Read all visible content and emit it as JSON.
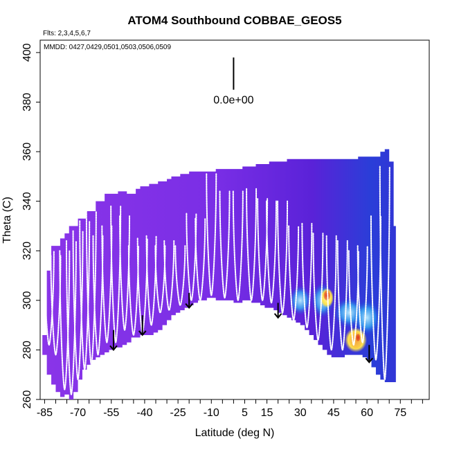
{
  "chart_data": {
    "type": "heatmap",
    "title": "ATOM4 Southbound COBBAE_GEOS5",
    "flights_note": "Flts: 2,3,4,5,6,7",
    "dates_note": "MMDD: 0427,0429,0501,0503,0506,0509",
    "xlabel": "Latitude (deg N)",
    "ylabel": "Theta (C)",
    "xlim": [
      -87,
      88
    ],
    "ylim": [
      260,
      405
    ],
    "x_ticks": [
      -85,
      -70,
      -55,
      -40,
      -25,
      -10,
      5,
      15,
      30,
      45,
      60,
      75
    ],
    "x_tick_labels": [
      "-85",
      "-70",
      "-55",
      "-40",
      "-25",
      "-10",
      "5",
      "15",
      "30",
      "45",
      "60",
      "75"
    ],
    "x_minor_ticks": [
      -80,
      -75,
      -65,
      -60,
      -50,
      -45,
      -35,
      -30,
      -20,
      -15,
      -5,
      0,
      10,
      20,
      25,
      35,
      40,
      50,
      55,
      65,
      70,
      80,
      85
    ],
    "y_ticks": [
      260,
      280,
      300,
      320,
      340,
      360,
      380,
      400
    ],
    "y_tick_labels": [
      "260",
      "280",
      "300",
      "320",
      "340",
      "360",
      "380",
      "400"
    ],
    "scale_bar_label": "0.0e+00",
    "colors": {
      "background_field": "#7f2fe6",
      "low": "#5a1fd6",
      "mid": "#1550e0",
      "light": "#6fd0ff",
      "white": "#ffffff",
      "yellow": "#ffe34a",
      "orange": "#f08a1c",
      "red": "#d4281a",
      "flight_track": "#ffffff",
      "arrow": "#000000"
    },
    "upper_boundary": [
      [
        -86,
        286
      ],
      [
        -84,
        312
      ],
      [
        -82,
        322
      ],
      [
        -80,
        322
      ],
      [
        -78,
        325
      ],
      [
        -76,
        327
      ],
      [
        -74,
        330
      ],
      [
        -72,
        330
      ],
      [
        -70,
        333
      ],
      [
        -68,
        333
      ],
      [
        -66,
        336
      ],
      [
        -64,
        336
      ],
      [
        -62,
        340
      ],
      [
        -60,
        340
      ],
      [
        -58,
        343
      ],
      [
        -56,
        343
      ],
      [
        -54,
        343
      ],
      [
        -52,
        344
      ],
      [
        -50,
        344
      ],
      [
        -48,
        343
      ],
      [
        -46,
        343
      ],
      [
        -44,
        345
      ],
      [
        -42,
        346
      ],
      [
        -40,
        346
      ],
      [
        -38,
        347
      ],
      [
        -36,
        347
      ],
      [
        -34,
        348
      ],
      [
        -32,
        348
      ],
      [
        -30,
        349
      ],
      [
        -28,
        350
      ],
      [
        -26,
        350
      ],
      [
        -24,
        351
      ],
      [
        -22,
        351
      ],
      [
        -20,
        352
      ],
      [
        -18,
        352
      ],
      [
        -16,
        352
      ],
      [
        -14,
        352
      ],
      [
        -12,
        352
      ],
      [
        -10,
        352
      ],
      [
        -8,
        353
      ],
      [
        -6,
        353
      ],
      [
        -4,
        353
      ],
      [
        -2,
        353
      ],
      [
        0,
        353
      ],
      [
        2,
        353
      ],
      [
        4,
        354
      ],
      [
        6,
        354
      ],
      [
        8,
        354
      ],
      [
        10,
        355
      ],
      [
        12,
        355
      ],
      [
        14,
        355
      ],
      [
        16,
        356
      ],
      [
        18,
        356
      ],
      [
        20,
        356
      ],
      [
        22,
        356
      ],
      [
        24,
        357
      ],
      [
        26,
        357
      ],
      [
        28,
        357
      ],
      [
        30,
        357
      ],
      [
        32,
        357
      ],
      [
        34,
        357
      ],
      [
        36,
        357
      ],
      [
        38,
        357
      ],
      [
        40,
        357
      ],
      [
        42,
        357
      ],
      [
        44,
        357
      ],
      [
        46,
        357
      ],
      [
        48,
        357
      ],
      [
        50,
        357
      ],
      [
        52,
        357
      ],
      [
        54,
        357
      ],
      [
        56,
        358
      ],
      [
        58,
        358
      ],
      [
        60,
        358
      ],
      [
        62,
        358
      ],
      [
        64,
        358
      ],
      [
        66,
        360
      ],
      [
        68,
        361
      ],
      [
        70,
        356
      ],
      [
        72,
        330
      ],
      [
        73,
        300
      ]
    ],
    "lower_boundary": [
      [
        -86,
        278
      ],
      [
        -84,
        270
      ],
      [
        -82,
        266
      ],
      [
        -80,
        263
      ],
      [
        -78,
        261
      ],
      [
        -76,
        262
      ],
      [
        -74,
        260
      ],
      [
        -72,
        263
      ],
      [
        -70,
        268
      ],
      [
        -68,
        272
      ],
      [
        -66,
        274
      ],
      [
        -64,
        276
      ],
      [
        -62,
        277
      ],
      [
        -60,
        278
      ],
      [
        -58,
        279
      ],
      [
        -56,
        280
      ],
      [
        -54,
        281
      ],
      [
        -52,
        281
      ],
      [
        -50,
        282
      ],
      [
        -48,
        283
      ],
      [
        -46,
        285
      ],
      [
        -44,
        285
      ],
      [
        -42,
        286
      ],
      [
        -40,
        286
      ],
      [
        -38,
        286
      ],
      [
        -36,
        287
      ],
      [
        -34,
        288
      ],
      [
        -32,
        290
      ],
      [
        -30,
        292
      ],
      [
        -28,
        294
      ],
      [
        -26,
        295
      ],
      [
        -24,
        296
      ],
      [
        -22,
        297
      ],
      [
        -20,
        298
      ],
      [
        -18,
        299
      ],
      [
        -16,
        300
      ],
      [
        -14,
        300
      ],
      [
        -12,
        301
      ],
      [
        -10,
        301
      ],
      [
        -8,
        300
      ],
      [
        -6,
        300
      ],
      [
        -4,
        300
      ],
      [
        -2,
        300
      ],
      [
        0,
        299
      ],
      [
        2,
        299
      ],
      [
        4,
        300
      ],
      [
        6,
        300
      ],
      [
        8,
        299
      ],
      [
        10,
        299
      ],
      [
        12,
        298
      ],
      [
        14,
        297
      ],
      [
        16,
        297
      ],
      [
        18,
        296
      ],
      [
        20,
        295
      ],
      [
        22,
        294
      ],
      [
        24,
        293
      ],
      [
        26,
        292
      ],
      [
        28,
        291
      ],
      [
        30,
        290
      ],
      [
        32,
        288
      ],
      [
        34,
        286
      ],
      [
        36,
        284
      ],
      [
        38,
        282
      ],
      [
        40,
        280
      ],
      [
        42,
        278
      ],
      [
        44,
        277
      ],
      [
        46,
        277
      ],
      [
        48,
        277
      ],
      [
        50,
        278
      ],
      [
        52,
        278
      ],
      [
        54,
        278
      ],
      [
        56,
        278
      ],
      [
        58,
        277
      ],
      [
        60,
        276
      ],
      [
        62,
        273
      ],
      [
        64,
        270
      ],
      [
        66,
        268
      ],
      [
        68,
        267
      ],
      [
        70,
        267
      ],
      [
        72,
        267
      ],
      [
        73,
        267
      ]
    ],
    "hotspots": [
      {
        "x": 42,
        "y": 301,
        "w": 6,
        "h": 8,
        "color": "yellow"
      },
      {
        "x": 42,
        "y": 302,
        "w": 3,
        "h": 4,
        "color": "red"
      },
      {
        "x": 55,
        "y": 284,
        "w": 10,
        "h": 10,
        "color": "yellow"
      },
      {
        "x": 55,
        "y": 284,
        "w": 6,
        "h": 7,
        "color": "orange"
      },
      {
        "x": 56,
        "y": 285,
        "w": 2,
        "h": 3,
        "color": "red"
      },
      {
        "x": 52,
        "y": 295,
        "w": 14,
        "h": 12,
        "color": "light"
      },
      {
        "x": 60,
        "y": 293,
        "w": 12,
        "h": 14,
        "color": "light"
      },
      {
        "x": 40,
        "y": 300,
        "w": 10,
        "h": 14,
        "color": "light"
      },
      {
        "x": 30,
        "y": 300,
        "w": 10,
        "h": 12,
        "color": "light"
      }
    ],
    "flight_profiles": [
      {
        "x": -83,
        "top": 320,
        "bottom": 282
      },
      {
        "x": -80,
        "top": 318,
        "bottom": 278
      },
      {
        "x": -76,
        "top": 320,
        "bottom": 264
      },
      {
        "x": -73,
        "top": 324,
        "bottom": 262
      },
      {
        "x": -70,
        "top": 328,
        "bottom": 268
      },
      {
        "x": -67,
        "top": 332,
        "bottom": 272
      },
      {
        "x": -64,
        "top": 336,
        "bottom": 274
      },
      {
        "x": -61,
        "top": 326,
        "bottom": 278
      },
      {
        "x": -57,
        "top": 330,
        "bottom": 283
      },
      {
        "x": -53,
        "top": 338,
        "bottom": 283
      },
      {
        "x": -49,
        "top": 334,
        "bottom": 288
      },
      {
        "x": -45,
        "top": 322,
        "bottom": 286
      },
      {
        "x": -41,
        "top": 325,
        "bottom": 287
      },
      {
        "x": -37,
        "top": 326,
        "bottom": 290
      },
      {
        "x": -33,
        "top": 322,
        "bottom": 295
      },
      {
        "x": -29,
        "top": 324,
        "bottom": 296
      },
      {
        "x": -24,
        "top": 322,
        "bottom": 298
      },
      {
        "x": -19,
        "top": 335,
        "bottom": 300
      },
      {
        "x": -15,
        "top": 333,
        "bottom": 300
      },
      {
        "x": -10,
        "top": 351,
        "bottom": 302
      },
      {
        "x": -4,
        "top": 344,
        "bottom": 301
      },
      {
        "x": 2,
        "top": 344,
        "bottom": 300
      },
      {
        "x": 8,
        "top": 345,
        "bottom": 300
      },
      {
        "x": 13,
        "top": 341,
        "bottom": 300
      },
      {
        "x": 17,
        "top": 340,
        "bottom": 299
      },
      {
        "x": 22,
        "top": 340,
        "bottom": 295
      },
      {
        "x": 27,
        "top": 330,
        "bottom": 292
      },
      {
        "x": 33,
        "top": 331,
        "bottom": 289
      },
      {
        "x": 38,
        "top": 327,
        "bottom": 284
      },
      {
        "x": 44,
        "top": 326,
        "bottom": 280
      },
      {
        "x": 49,
        "top": 324,
        "bottom": 280
      },
      {
        "x": 54,
        "top": 320,
        "bottom": 282
      },
      {
        "x": 58,
        "top": 322,
        "bottom": 283
      },
      {
        "x": 64,
        "top": 334,
        "bottom": 276
      },
      {
        "x": 68,
        "top": 354,
        "bottom": 268
      }
    ],
    "arrows": [
      {
        "x": -54,
        "top": 288,
        "bottom": 280
      },
      {
        "x": -41,
        "top": 294,
        "bottom": 286
      },
      {
        "x": -20,
        "top": 303,
        "bottom": 297
      },
      {
        "x": 20,
        "top": 299,
        "bottom": 293
      },
      {
        "x": 61,
        "top": 282,
        "bottom": 275
      }
    ],
    "scale_bar": {
      "x": 0,
      "top": 398,
      "bottom": 385
    }
  }
}
